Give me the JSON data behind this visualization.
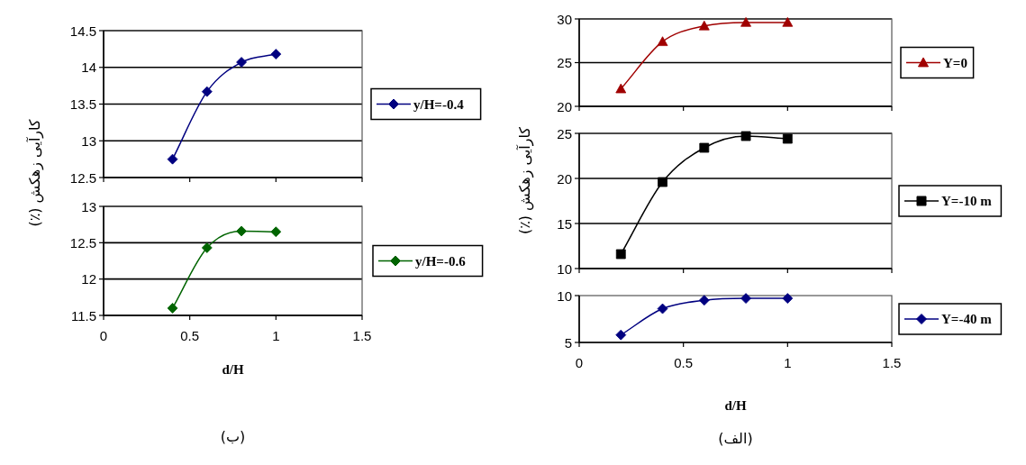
{
  "chart_data": [
    {
      "type": "line",
      "ylabel": "کارآیی زهکش (٪)",
      "xlim": [
        0,
        1.5
      ],
      "xticks": [
        0,
        0.5,
        1,
        1.5
      ],
      "ylim": [
        12.5,
        14.5
      ],
      "yticks": [
        12.5,
        13,
        13.5,
        14,
        14.5
      ],
      "tick_labels": "y",
      "grid": "y",
      "legend": "right",
      "marker": "diamond",
      "x": [
        0.4,
        0.6,
        0.8,
        1.0
      ],
      "series": [
        {
          "name": "y/H=-0.4",
          "color": "#000080",
          "values": [
            12.75,
            13.67,
            14.07,
            14.18
          ]
        }
      ]
    },
    {
      "type": "line",
      "xlabel": "d/H",
      "annotations": [
        "(ب)"
      ],
      "xlim": [
        0,
        1.5
      ],
      "xticks": [
        0,
        0.5,
        1,
        1.5
      ],
      "ylim": [
        11.5,
        13
      ],
      "yticks": [
        11.5,
        12,
        12.5,
        13
      ],
      "grid": "y",
      "legend": "right",
      "marker": "diamond",
      "x": [
        0.4,
        0.6,
        0.8,
        1.0
      ],
      "series": [
        {
          "name": "y/H=-0.6",
          "color": "#006400",
          "values": [
            11.6,
            12.43,
            12.66,
            12.65
          ]
        }
      ]
    },
    {
      "type": "line",
      "ylabel": "کارآیی زهکش (٪)",
      "xlim": [
        0,
        1.5
      ],
      "xticks": [
        0,
        0.5,
        1,
        1.5
      ],
      "ylim": [
        20,
        30
      ],
      "yticks": [
        20,
        25,
        30
      ],
      "tick_labels": "y",
      "grid": "y",
      "legend": "right",
      "marker": "triangle",
      "x": [
        0.2,
        0.4,
        0.6,
        0.8,
        1.0
      ],
      "series": [
        {
          "name": "Y=0",
          "color": "#a00000",
          "values": [
            22,
            27.4,
            29.2,
            29.6,
            29.6
          ]
        }
      ]
    },
    {
      "type": "line",
      "xlim": [
        0,
        1.5
      ],
      "xticks": [
        0,
        0.5,
        1,
        1.5
      ],
      "ylim": [
        10,
        25
      ],
      "yticks": [
        10,
        15,
        20,
        25
      ],
      "tick_labels": "y",
      "grid": "y",
      "legend": "right",
      "marker": "square",
      "x": [
        0.2,
        0.4,
        0.6,
        0.8,
        1.0
      ],
      "series": [
        {
          "name": "Y=-10 m",
          "color": "#000000",
          "values": [
            11.6,
            19.6,
            23.4,
            24.7,
            24.4
          ]
        }
      ]
    },
    {
      "type": "line",
      "xlabel": "d/H",
      "annotations": [
        "(الف)"
      ],
      "xlim": [
        0,
        1.5
      ],
      "xticks": [
        0,
        0.5,
        1,
        1.5
      ],
      "ylim": [
        5,
        10
      ],
      "yticks": [
        5,
        10
      ],
      "legend": "right",
      "marker": "diamond",
      "x": [
        0.2,
        0.4,
        0.6,
        0.8,
        1.0
      ],
      "series": [
        {
          "name": "Y=-40 m",
          "color": "#000080",
          "values": [
            5.8,
            8.6,
            9.5,
            9.7,
            9.7
          ]
        }
      ]
    }
  ]
}
